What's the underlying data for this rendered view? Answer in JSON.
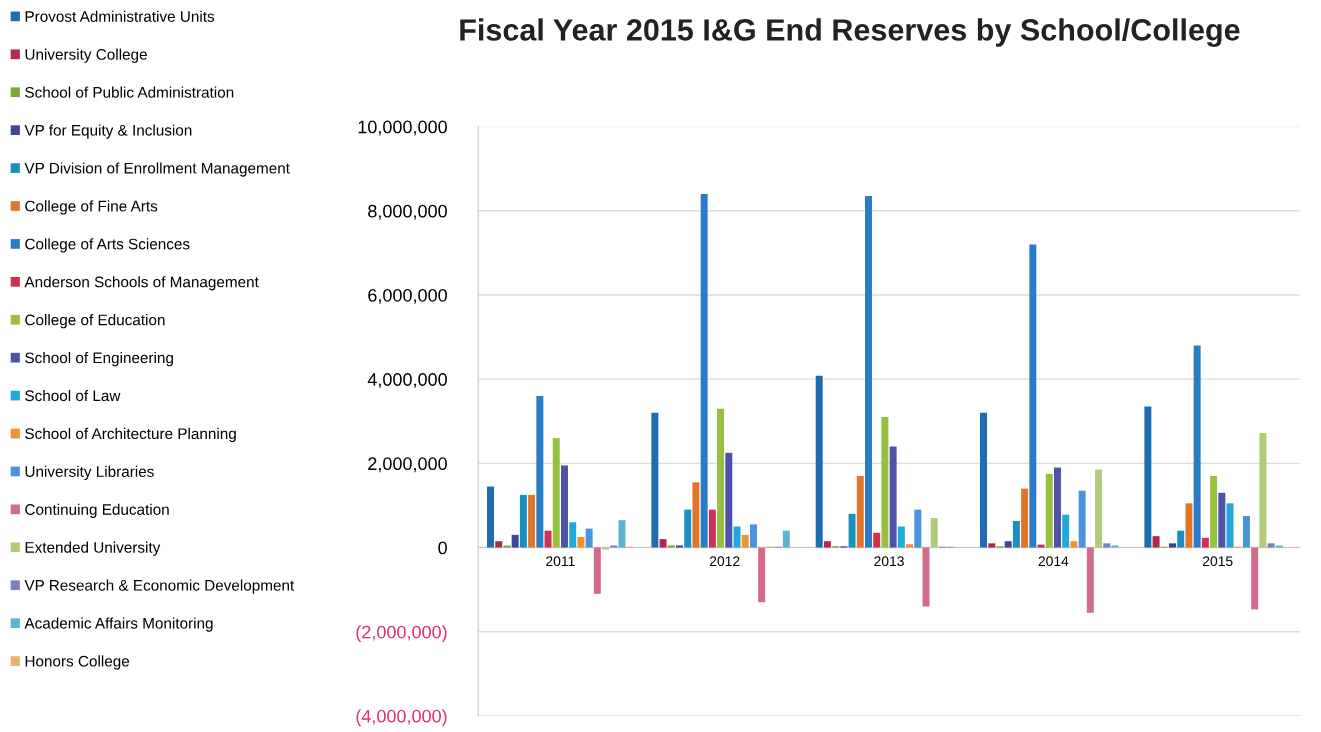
{
  "chart_data": {
    "type": "bar",
    "title": "Fiscal Year 2015 I&G End Reserves by School/College",
    "categories": [
      "2011",
      "2012",
      "2013",
      "2014",
      "2015"
    ],
    "series": [
      {
        "name": "Provost Administrative Units",
        "color": "#1f6cb0",
        "values": [
          1450000,
          3200000,
          4080000,
          3200000,
          3350000
        ]
      },
      {
        "name": "University College",
        "color": "#b0284a",
        "values": [
          150000,
          200000,
          150000,
          100000,
          270000
        ]
      },
      {
        "name": "School of Public Administration",
        "color": "#7ea636",
        "values": [
          50000,
          50000,
          30000,
          30000,
          20000
        ]
      },
      {
        "name": "VP for Equity & Inclusion",
        "color": "#3f4496",
        "values": [
          300000,
          50000,
          30000,
          150000,
          100000
        ]
      },
      {
        "name": "VP Division of Enrollment Management",
        "color": "#1b90bf",
        "values": [
          1250000,
          900000,
          800000,
          630000,
          400000
        ]
      },
      {
        "name": "College of Fine Arts",
        "color": "#e0762a",
        "values": [
          1250000,
          1550000,
          1700000,
          1400000,
          1050000
        ]
      },
      {
        "name": "College of Arts Sciences",
        "color": "#2a7cc8",
        "values": [
          3600000,
          8400000,
          8350000,
          7200000,
          4800000
        ]
      },
      {
        "name": "Anderson Schools of Management",
        "color": "#d0304f",
        "values": [
          400000,
          900000,
          350000,
          70000,
          230000
        ]
      },
      {
        "name": "College of Education",
        "color": "#98c040",
        "values": [
          2600000,
          3300000,
          3100000,
          1750000,
          1700000
        ]
      },
      {
        "name": "School of Engineering",
        "color": "#4e52a8",
        "values": [
          1950000,
          2250000,
          2400000,
          1900000,
          1300000
        ]
      },
      {
        "name": "School of Law",
        "color": "#22a8d8",
        "values": [
          600000,
          500000,
          500000,
          780000,
          1050000
        ]
      },
      {
        "name": "School of Architecture Planning",
        "color": "#f39030",
        "values": [
          250000,
          300000,
          80000,
          150000,
          20000
        ]
      },
      {
        "name": "University Libraries",
        "color": "#4a94dc",
        "values": [
          450000,
          550000,
          900000,
          1350000,
          750000
        ]
      },
      {
        "name": "Continuing Education",
        "color": "#d46a8a",
        "values": [
          -1100000,
          -1300000,
          -1400000,
          -1550000,
          -1470000
        ]
      },
      {
        "name": "Extended University",
        "color": "#b0cc78",
        "values": [
          -50000,
          20000,
          700000,
          1850000,
          2720000
        ]
      },
      {
        "name": "VP Research & Economic Development",
        "color": "#7d80c0",
        "values": [
          50000,
          20000,
          20000,
          100000,
          100000
        ]
      },
      {
        "name": "Academic Affairs Monitoring",
        "color": "#5cb4d0",
        "values": [
          650000,
          400000,
          20000,
          50000,
          50000
        ]
      },
      {
        "name": "Honors College",
        "color": "#e8b070",
        "values": [
          20000,
          10000,
          10000,
          10000,
          10000
        ]
      }
    ],
    "ylim": [
      -4000000,
      10000000
    ],
    "yticks": [
      {
        "value": -4000000,
        "label": "(4,000,000)"
      },
      {
        "value": -2000000,
        "label": "(2,000,000)"
      },
      {
        "value": 0,
        "label": "0"
      },
      {
        "value": 2000000,
        "label": "2,000,000"
      },
      {
        "value": 4000000,
        "label": "4,000,000"
      },
      {
        "value": 6000000,
        "label": "6,000,000"
      },
      {
        "value": 8000000,
        "label": "8,000,000"
      },
      {
        "value": 10000000,
        "label": "10,000,000"
      }
    ],
    "grid": "y",
    "legend": "left"
  }
}
